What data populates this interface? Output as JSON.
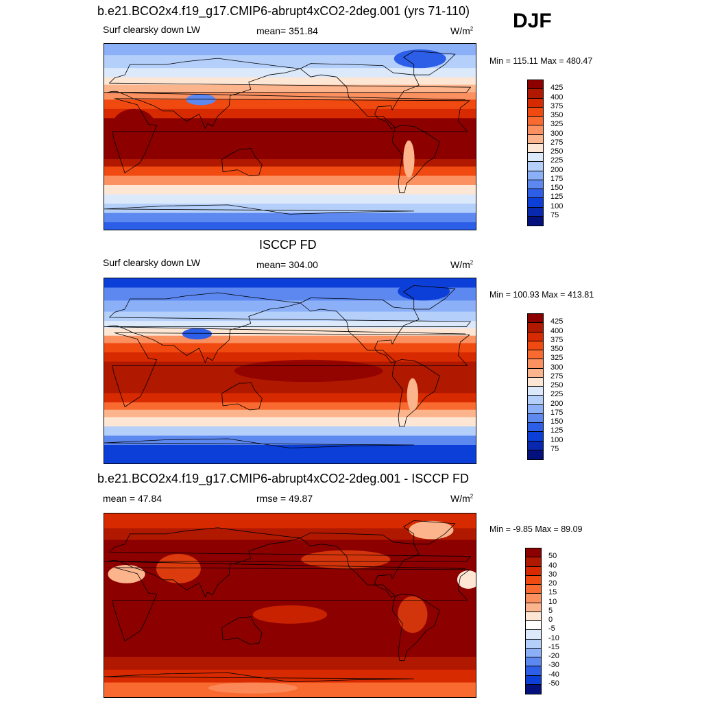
{
  "season": "DJF",
  "units_base": "W/m",
  "units_exp": "2",
  "panels": [
    {
      "title": "b.e21.BCO2x4.f19_g17.CMIP6-abrupt4xCO2-2deg.001 (yrs 71-110)",
      "left_label": "Surf clearsky down LW",
      "center_label": "mean= 351.84",
      "minmax": "Min = 115.11 Max = 480.47",
      "field": "model"
    },
    {
      "title": "ISCCP FD",
      "left_label": "Surf clearsky down LW",
      "center_label": "mean= 304.00",
      "minmax": "Min = 100.93 Max = 413.81",
      "field": "obs"
    },
    {
      "title": "b.e21.BCO2x4.f19_g17.CMIP6-abrupt4xCO2-2deg.001 - ISCCP FD",
      "left_label": "mean =  47.84",
      "center_label": "rmse =  49.87",
      "minmax": "Min =  -9.85 Max =  89.09",
      "field": "diff"
    }
  ],
  "colorbars": {
    "absolute": {
      "levels": [
        "425",
        "400",
        "375",
        "350",
        "325",
        "300",
        "275",
        "250",
        "225",
        "200",
        "175",
        "150",
        "125",
        "100",
        "75"
      ],
      "colors": [
        "#8c0000",
        "#b01800",
        "#d82a00",
        "#f04a10",
        "#f86a30",
        "#fb9060",
        "#fcb48c",
        "#fde6d4",
        "#dce9fb",
        "#b4cffa",
        "#8cb0f8",
        "#5c88f0",
        "#2c5ee8",
        "#0c3ed8",
        "#0828b0",
        "#04107c"
      ]
    },
    "difference": {
      "levels": [
        "50",
        "40",
        "30",
        "20",
        "15",
        "10",
        "5",
        "0",
        "-5",
        "-10",
        "-15",
        "-20",
        "-30",
        "-40",
        "-50"
      ],
      "colors": [
        "#8c0000",
        "#b01800",
        "#d82a00",
        "#f04a10",
        "#f86a30",
        "#fb9060",
        "#fcb48c",
        "#fde6d4",
        "#ffffff",
        "#dce9fb",
        "#b4cffa",
        "#8cb0f8",
        "#5c88f0",
        "#2c5ee8",
        "#0c3ed8",
        "#04107c"
      ]
    }
  }
}
